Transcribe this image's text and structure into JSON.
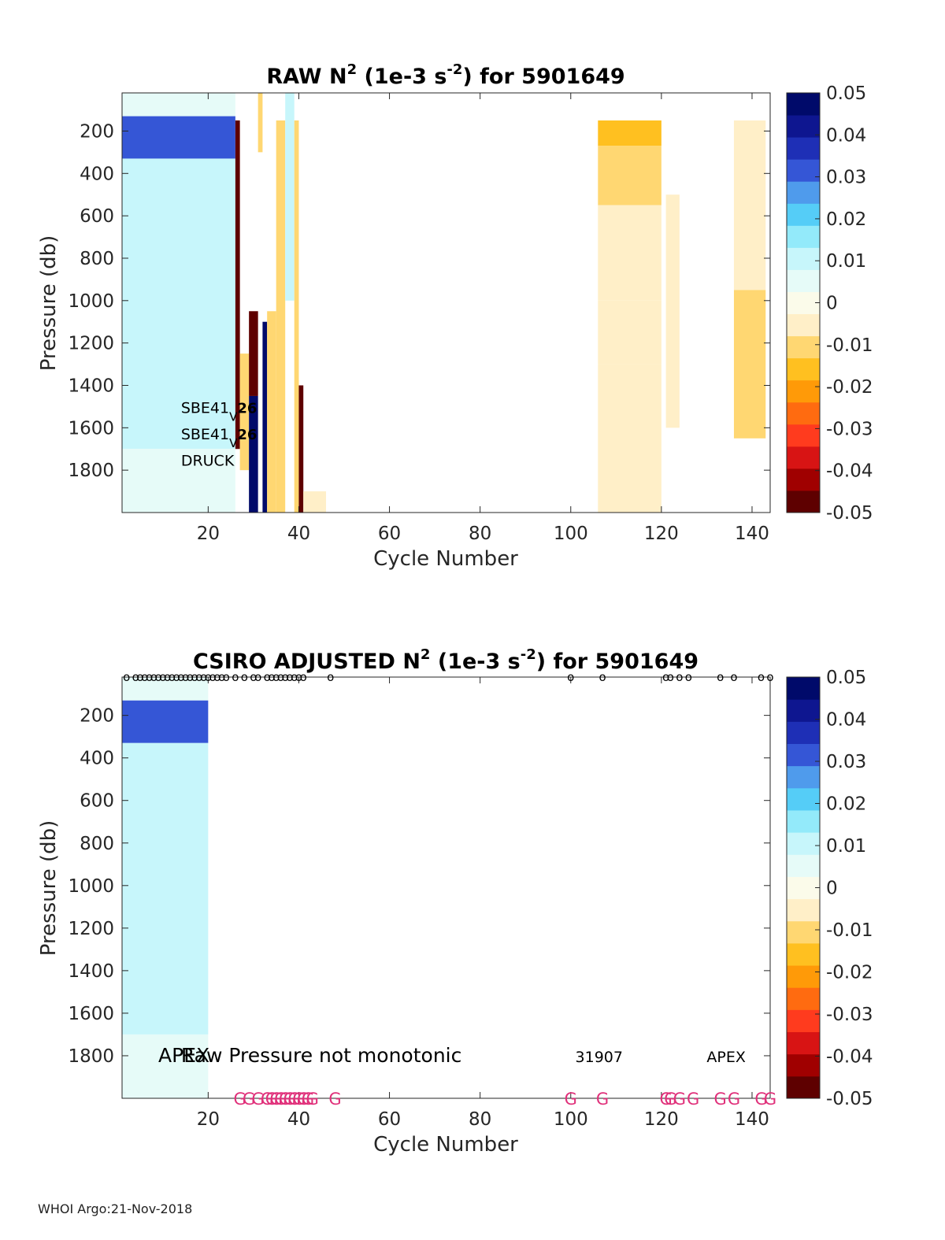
{
  "footer": "WHOI Argo:21-Nov-2018",
  "colors": {
    "colormap": [
      "#5e0000",
      "#a00000",
      "#d81414",
      "#ff3b1e",
      "#ff6b10",
      "#ff9a08",
      "#ffc020",
      "#ffd772",
      "#ffefc8",
      "#fbfbea",
      "#e6fbf8",
      "#c7f6fb",
      "#93eafa",
      "#55cdf7",
      "#4f9bec",
      "#3556d6",
      "#1e2fb6",
      "#0e1690",
      "#000a6a"
    ],
    "flag_g": "#e0307a"
  },
  "chart_data": [
    {
      "type": "heatmap",
      "title_pre": "RAW N",
      "title_sup1": "2",
      "title_mid": " (1e-3 s",
      "title_sup2": "-2",
      "title_post": ") for 5901649",
      "xlabel": "Cycle Number",
      "ylabel": "Pressure (db)",
      "xlim": [
        1,
        144
      ],
      "ylim": [
        2000,
        20
      ],
      "xticks": [
        20,
        40,
        60,
        80,
        100,
        120,
        140
      ],
      "yticks": [
        200,
        400,
        600,
        800,
        1000,
        1200,
        1400,
        1600,
        1800
      ],
      "colorbar": {
        "range": [
          -0.05,
          0.05
        ],
        "ticks": [
          "0.05",
          "0.04",
          "0.03",
          "0.02",
          "0.01",
          "0",
          "-0.01",
          "-0.02",
          "-0.03",
          "-0.04",
          "-0.05"
        ]
      },
      "annotations": [
        {
          "text": "SBE41",
          "sub": "V",
          "tail": "26",
          "x": 14,
          "p": 1500
        },
        {
          "text": "SBE41",
          "sub": "V",
          "tail": "26",
          "x": 14,
          "p": 1625
        },
        {
          "text": "DRUCK",
          "x": 14,
          "p": 1750
        }
      ],
      "cells": [
        {
          "x0": 1,
          "x1": 26,
          "p0": 20,
          "p1": 130,
          "v": 0.003
        },
        {
          "x0": 1,
          "x1": 26,
          "p0": 130,
          "p1": 330,
          "v": 0.032
        },
        {
          "x0": 1,
          "x1": 26,
          "p0": 330,
          "p1": 1700,
          "v": 0.008
        },
        {
          "x0": 1,
          "x1": 26,
          "p0": 1700,
          "p1": 2000,
          "v": 0.004
        },
        {
          "x0": 26,
          "x1": 27,
          "p0": 150,
          "p1": 1700,
          "v": -0.05
        },
        {
          "x0": 27,
          "x1": 29,
          "p0": 1250,
          "p1": 1800,
          "v": -0.009
        },
        {
          "x0": 29,
          "x1": 31,
          "p0": 1450,
          "p1": 2000,
          "v": 0.045
        },
        {
          "x0": 29,
          "x1": 31,
          "p0": 1050,
          "p1": 1450,
          "v": -0.048
        },
        {
          "x0": 31,
          "x1": 32,
          "p0": 20,
          "p1": 300,
          "v": -0.008
        },
        {
          "x0": 32,
          "x1": 33,
          "p0": 1100,
          "p1": 2000,
          "v": 0.045
        },
        {
          "x0": 33,
          "x1": 35,
          "p0": 1050,
          "p1": 2000,
          "v": -0.012
        },
        {
          "x0": 35,
          "x1": 37,
          "p0": 150,
          "p1": 2000,
          "v": -0.008
        },
        {
          "x0": 37,
          "x1": 39,
          "p0": 20,
          "p1": 1000,
          "v": 0.01
        },
        {
          "x0": 39,
          "x1": 40,
          "p0": 150,
          "p1": 2000,
          "v": -0.008
        },
        {
          "x0": 40,
          "x1": 41,
          "p0": 1400,
          "p1": 2000,
          "v": -0.05
        },
        {
          "x0": 41,
          "x1": 46,
          "p0": 1900,
          "p1": 2000,
          "v": -0.007
        },
        {
          "x0": 106,
          "x1": 120,
          "p0": 150,
          "p1": 270,
          "v": -0.018
        },
        {
          "x0": 106,
          "x1": 120,
          "p0": 270,
          "p1": 550,
          "v": -0.008
        },
        {
          "x0": 106,
          "x1": 120,
          "p0": 550,
          "p1": 1000,
          "v": -0.006
        },
        {
          "x0": 106,
          "x1": 120,
          "p0": 1000,
          "p1": 1300,
          "v": -0.003
        },
        {
          "x0": 106,
          "x1": 120,
          "p0": 1300,
          "p1": 2000,
          "v": -0.006
        },
        {
          "x0": 121,
          "x1": 124,
          "p0": 500,
          "p1": 1600,
          "v": -0.006
        },
        {
          "x0": 136,
          "x1": 143,
          "p0": 150,
          "p1": 950,
          "v": -0.004
        },
        {
          "x0": 136,
          "x1": 143,
          "p0": 950,
          "p1": 1650,
          "v": -0.008
        }
      ]
    },
    {
      "type": "heatmap",
      "title_pre": "CSIRO  ADJUSTED N",
      "title_sup1": "2",
      "title_mid": " (1e-3 s",
      "title_sup2": "-2",
      "title_post": ") for 5901649",
      "xlabel": "Cycle Number",
      "ylabel": "Pressure (db)",
      "xlim": [
        1,
        144
      ],
      "ylim": [
        2000,
        20
      ],
      "xticks": [
        20,
        40,
        60,
        80,
        100,
        120,
        140
      ],
      "yticks": [
        200,
        400,
        600,
        800,
        1000,
        1200,
        1400,
        1600,
        1800
      ],
      "colorbar": {
        "range": [
          -0.05,
          0.05
        ],
        "ticks": [
          "0.05",
          "0.04",
          "0.03",
          "0.02",
          "0.01",
          "0",
          "-0.01",
          "-0.02",
          "-0.03",
          "-0.04",
          "-0.05"
        ]
      },
      "annotations": [
        {
          "text": "APEX",
          "x": 9,
          "p": 1800
        },
        {
          "text": "Raw Pressure not monotonic",
          "x": 14,
          "p": 1800
        },
        {
          "text": "31907",
          "x": 101,
          "p": 1800
        },
        {
          "text": "APEX",
          "x": 130,
          "p": 1800
        }
      ],
      "top_flags": {
        "symbol": "o",
        "cycles": [
          2,
          4,
          5,
          6,
          7,
          8,
          9,
          10,
          11,
          12,
          13,
          14,
          15,
          16,
          17,
          18,
          19,
          20,
          21,
          22,
          23,
          24,
          26,
          28,
          30,
          31,
          33,
          34,
          35,
          36,
          37,
          38,
          39,
          40,
          41,
          47,
          100,
          107,
          121,
          122,
          124,
          126,
          133,
          136,
          142,
          144
        ]
      },
      "bottom_flags": {
        "symbol": "G",
        "cycles": [
          27,
          29,
          31,
          33,
          34,
          35,
          36,
          37,
          38,
          39,
          40,
          41,
          42,
          43,
          48,
          100,
          107,
          121,
          122,
          124,
          127,
          133,
          136,
          142,
          144
        ]
      },
      "cells": [
        {
          "x0": 1,
          "x1": 20,
          "p0": 20,
          "p1": 130,
          "v": 0.003
        },
        {
          "x0": 1,
          "x1": 20,
          "p0": 130,
          "p1": 330,
          "v": 0.032
        },
        {
          "x0": 1,
          "x1": 20,
          "p0": 330,
          "p1": 1700,
          "v": 0.008
        },
        {
          "x0": 1,
          "x1": 20,
          "p0": 1700,
          "p1": 2000,
          "v": 0.004
        }
      ]
    }
  ]
}
